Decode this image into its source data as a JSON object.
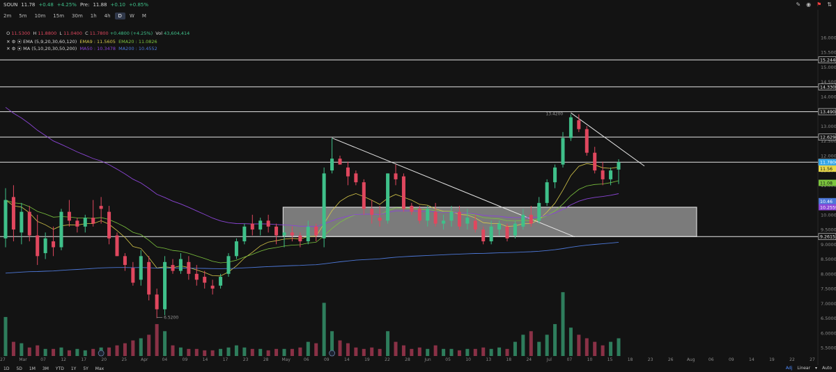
{
  "header": {
    "symbol": "SOUN",
    "price": "11.78",
    "change": "+0.48",
    "change_pct": "+4.25%",
    "pre_label": "Pre:",
    "pre_price": "11.88",
    "pre_change": "+0.10",
    "pre_change_pct": "+0.85%"
  },
  "timeframes": [
    "2m",
    "5m",
    "10m",
    "15m",
    "30m",
    "1h",
    "4h",
    "D",
    "W",
    "M"
  ],
  "active_timeframe": "D",
  "ohlc": {
    "o_label": "O",
    "o": "11.5300",
    "h_label": "H",
    "h": "11.8800",
    "l_label": "L",
    "l": "11.0400",
    "c_label": "C",
    "c": "11.7800",
    "chg": "+0.4800 (+4.25%)",
    "vol_label": "Vol",
    "vol": "43,604,414"
  },
  "indicators": {
    "ema": {
      "name": "EMA (5,9,20,30,60,120)",
      "v1": "EMA9 : 11.5605",
      "v2": "EMA20 : 11.0826"
    },
    "ma": {
      "name": "MA (5,10,20,30,50,200)",
      "v1": "MA50 : 10.3478",
      "v2": "MA200 : 10.4552"
    }
  },
  "colors": {
    "up": "#3fc08a",
    "down": "#e0475e",
    "ema9": "#d6c84a",
    "ema20": "#7cc43e",
    "ma50": "#8b45d6",
    "ma200": "#4d78d8",
    "bg": "#131313"
  },
  "chart_data": {
    "type": "candlestick",
    "y_ticks": [
      "16.0000",
      "15.5000",
      "15.0000",
      "14.5000",
      "14.0000",
      "13.5000",
      "13.0000",
      "12.5000",
      "12.0000",
      "11.5000",
      "11.0000",
      "10.5000",
      "10.0000",
      "9.5000",
      "9.0000",
      "8.5000",
      "8.0000",
      "7.5000",
      "7.0000",
      "6.5000",
      "6.0000",
      "5.5000"
    ],
    "ylim": [
      5.2,
      16.5
    ],
    "x_ticks": [
      "27",
      "Mar",
      "07",
      "12",
      "17",
      "20",
      "25",
      "Apr",
      "04",
      "09",
      "14",
      "17",
      "23",
      "28",
      "May",
      "06",
      "09",
      "14",
      "19",
      "22",
      "28",
      "Jun",
      "05",
      "10",
      "13",
      "18",
      "24",
      "Jul",
      "07",
      "10",
      "15",
      "18",
      "23",
      "26",
      "Aug",
      "06",
      "09",
      "14",
      "19",
      "22",
      "27"
    ],
    "levels": [
      "15.2440",
      "14.3309",
      "13.4908",
      "12.6296",
      "11.7800",
      "9.2615"
    ],
    "price_labels": [
      {
        "text": "11.7800",
        "value": 11.78,
        "color": "#2fa3e6"
      },
      {
        "text": "11.56",
        "value": 11.56,
        "color": "#e8d84a"
      },
      {
        "text": "11.08",
        "value": 11.08,
        "color": "#7cc43e"
      },
      {
        "text": "10.46",
        "value": 10.46,
        "color": "#4d78d8"
      },
      {
        "text": "10.2559",
        "value": 10.2559,
        "color": "#8b45d6"
      }
    ],
    "annotations": [
      {
        "text": "13.4200",
        "value": 13.42
      },
      {
        "text": "6.5200",
        "value": 6.52
      }
    ],
    "zone": {
      "low": 9.2615,
      "high": 10.2559
    },
    "candles": [
      [
        9.2,
        10.9,
        8.9,
        10.5
      ],
      [
        10.6,
        11.0,
        9.1,
        9.5
      ],
      [
        9.4,
        10.4,
        9.0,
        10.1
      ],
      [
        10.1,
        10.3,
        9.1,
        9.3
      ],
      [
        9.3,
        10.0,
        8.3,
        8.6
      ],
      [
        8.7,
        9.4,
        8.5,
        9.2
      ],
      [
        9.1,
        9.6,
        8.6,
        8.9
      ],
      [
        8.9,
        10.2,
        8.8,
        10.1
      ],
      [
        10.1,
        10.5,
        9.6,
        9.8
      ],
      [
        9.8,
        9.9,
        9.4,
        9.6
      ],
      [
        9.6,
        10.0,
        9.4,
        9.9
      ],
      [
        9.9,
        10.5,
        9.6,
        9.7
      ],
      [
        10.3,
        10.6,
        9.7,
        10.2
      ],
      [
        10.1,
        10.3,
        9.0,
        9.2
      ],
      [
        9.3,
        9.4,
        8.6,
        8.6
      ],
      [
        8.6,
        8.7,
        8.1,
        8.3
      ],
      [
        8.2,
        8.4,
        7.6,
        7.7
      ],
      [
        7.8,
        8.8,
        7.6,
        8.6
      ],
      [
        8.4,
        8.6,
        7.1,
        7.3
      ],
      [
        7.3,
        7.5,
        6.5,
        6.8
      ],
      [
        6.8,
        8.6,
        6.6,
        8.4
      ],
      [
        8.3,
        8.5,
        8.0,
        8.1
      ],
      [
        8.1,
        8.7,
        8.0,
        8.5
      ],
      [
        8.4,
        8.6,
        7.8,
        8.0
      ],
      [
        8.0,
        8.3,
        7.6,
        7.8
      ],
      [
        7.9,
        8.1,
        7.5,
        7.7
      ],
      [
        7.6,
        7.8,
        7.3,
        7.5
      ],
      [
        7.6,
        8.0,
        7.5,
        7.9
      ],
      [
        8.0,
        8.7,
        7.9,
        8.6
      ],
      [
        8.6,
        9.2,
        8.5,
        9.1
      ],
      [
        9.1,
        9.7,
        9.0,
        9.6
      ],
      [
        9.7,
        10.0,
        9.3,
        9.5
      ],
      [
        9.5,
        9.9,
        9.3,
        9.8
      ],
      [
        9.8,
        10.0,
        9.4,
        9.6
      ],
      [
        9.6,
        9.7,
        9.0,
        9.3
      ],
      [
        9.3,
        9.6,
        8.9,
        9.4
      ],
      [
        9.4,
        9.6,
        9.1,
        9.3
      ],
      [
        9.3,
        9.4,
        8.9,
        9.1
      ],
      [
        9.1,
        9.8,
        9.0,
        9.6
      ],
      [
        9.6,
        9.7,
        9.1,
        9.3
      ],
      [
        9.2,
        11.6,
        8.9,
        11.4
      ],
      [
        11.5,
        12.6,
        11.4,
        11.9
      ],
      [
        11.9,
        12.0,
        11.7,
        11.7
      ],
      [
        11.6,
        11.8,
        11.0,
        11.3
      ],
      [
        11.4,
        11.5,
        11.0,
        11.1
      ],
      [
        11.1,
        11.2,
        10.0,
        10.2
      ],
      [
        10.2,
        10.5,
        9.7,
        10.0
      ],
      [
        9.9,
        10.3,
        9.6,
        9.8
      ],
      [
        9.8,
        11.4,
        9.7,
        11.4
      ],
      [
        11.4,
        11.7,
        11.0,
        11.2
      ],
      [
        11.3,
        11.4,
        10.1,
        10.2
      ],
      [
        10.3,
        10.4,
        10.0,
        10.1
      ],
      [
        10.2,
        10.3,
        9.7,
        9.8
      ],
      [
        9.8,
        10.3,
        9.6,
        10.2
      ],
      [
        10.1,
        10.4,
        9.6,
        9.7
      ],
      [
        9.7,
        10.0,
        9.5,
        9.8
      ],
      [
        9.8,
        10.3,
        9.6,
        10.1
      ],
      [
        10.1,
        10.3,
        9.5,
        9.6
      ],
      [
        9.7,
        10.2,
        9.5,
        9.9
      ],
      [
        9.8,
        10.0,
        9.4,
        9.5
      ],
      [
        9.5,
        9.6,
        9.0,
        9.1
      ],
      [
        9.1,
        9.8,
        9.0,
        9.6
      ],
      [
        9.5,
        9.8,
        9.3,
        9.7
      ],
      [
        9.6,
        9.7,
        9.1,
        9.2
      ],
      [
        9.3,
        9.8,
        9.2,
        9.7
      ],
      [
        9.6,
        10.2,
        9.5,
        10.0
      ],
      [
        10.0,
        10.3,
        9.6,
        9.7
      ],
      [
        9.8,
        10.6,
        9.7,
        10.4
      ],
      [
        10.4,
        11.2,
        10.3,
        11.1
      ],
      [
        11.1,
        11.7,
        10.9,
        11.6
      ],
      [
        11.7,
        12.8,
        11.6,
        12.6
      ],
      [
        12.6,
        13.4,
        12.5,
        13.3
      ],
      [
        13.2,
        13.4,
        12.8,
        12.9
      ],
      [
        12.9,
        13.0,
        12.0,
        12.1
      ],
      [
        12.1,
        12.3,
        11.4,
        11.5
      ],
      [
        11.5,
        11.8,
        11.0,
        11.2
      ],
      [
        11.2,
        11.6,
        11.0,
        11.5
      ],
      [
        11.53,
        11.88,
        11.04,
        11.78
      ]
    ],
    "volume": [
      0.55,
      0.2,
      0.18,
      0.12,
      0.15,
      0.1,
      0.1,
      0.12,
      0.08,
      0.1,
      0.08,
      0.1,
      0.12,
      0.12,
      0.15,
      0.18,
      0.22,
      0.25,
      0.3,
      0.45,
      0.35,
      0.15,
      0.12,
      0.1,
      0.1,
      0.08,
      0.08,
      0.1,
      0.12,
      0.15,
      0.12,
      0.1,
      0.1,
      0.08,
      0.1,
      0.1,
      0.1,
      0.12,
      0.2,
      0.18,
      0.75,
      0.35,
      0.22,
      0.18,
      0.12,
      0.1,
      0.12,
      0.1,
      0.35,
      0.2,
      0.15,
      0.1,
      0.12,
      0.1,
      0.15,
      0.1,
      0.1,
      0.08,
      0.1,
      0.1,
      0.12,
      0.1,
      0.12,
      0.1,
      0.2,
      0.3,
      0.35,
      0.2,
      0.3,
      0.45,
      0.9,
      0.4,
      0.3,
      0.25,
      0.2,
      0.15,
      0.2,
      0.25
    ],
    "volume_color": [
      "up",
      "down",
      "up",
      "down",
      "down",
      "up",
      "down",
      "up",
      "down",
      "up",
      "up",
      "down",
      "up",
      "down",
      "down",
      "down",
      "down",
      "up",
      "down",
      "down",
      "up",
      "down",
      "up",
      "down",
      "down",
      "down",
      "down",
      "up",
      "up",
      "up",
      "up",
      "down",
      "up",
      "down",
      "down",
      "up",
      "down",
      "down",
      "up",
      "down",
      "up",
      "up",
      "down",
      "down",
      "down",
      "down",
      "down",
      "down",
      "up",
      "down",
      "down",
      "down",
      "down",
      "up",
      "down",
      "up",
      "up",
      "down",
      "up",
      "down",
      "down",
      "up",
      "up",
      "down",
      "up",
      "up",
      "down",
      "up",
      "up",
      "up",
      "up",
      "up",
      "down",
      "down",
      "down",
      "down",
      "up",
      "up"
    ]
  },
  "bottom": {
    "ranges": [
      "1D",
      "5D",
      "1M",
      "3M",
      "YTD",
      "1Y",
      "5Y",
      "Max"
    ],
    "adj": "Adj",
    "scale": "Linear",
    "auto": "Auto"
  }
}
